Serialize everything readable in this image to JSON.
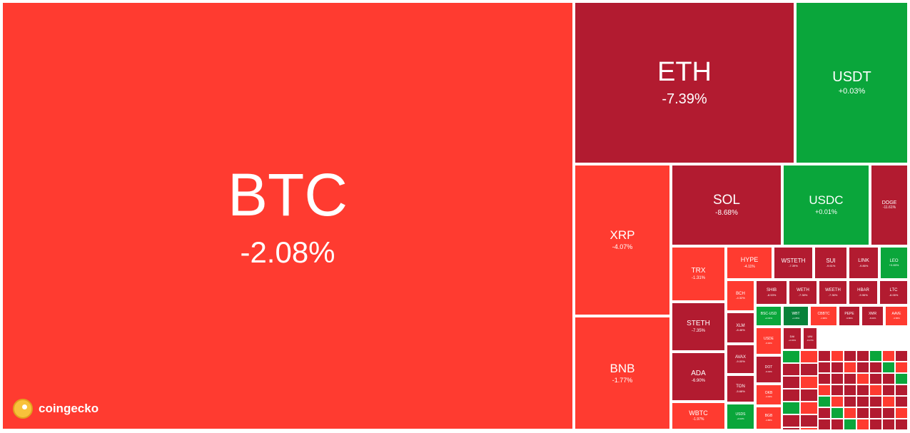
{
  "brand": {
    "name": "coingecko",
    "logo_color": "#f8c23b"
  },
  "colors": {
    "negative": "#ff3b30",
    "negative_strong": "#b21b30",
    "positive": "#0aa63b",
    "positive_strong": "#08823a"
  },
  "chart_data": {
    "type": "heatmap",
    "title": "",
    "tiles": [
      {
        "symbol": "BTC",
        "change": "-2.08%"
      },
      {
        "symbol": "ETH",
        "change": "-7.39%"
      },
      {
        "symbol": "USDT",
        "change": "+0.03%"
      },
      {
        "symbol": "XRP",
        "change": "-4.07%"
      },
      {
        "symbol": "BNB",
        "change": "-1.77%"
      },
      {
        "symbol": "SOL",
        "change": "-8.68%"
      },
      {
        "symbol": "USDC",
        "change": "+0.01%"
      },
      {
        "symbol": "DOGE",
        "change": "-11.61%"
      },
      {
        "symbol": "TRX",
        "change": "-1.31%"
      },
      {
        "symbol": "HYPE",
        "change": "-4.11%"
      },
      {
        "symbol": "WSTETH",
        "change": "-7.39%"
      },
      {
        "symbol": "SUI",
        "change": "-9.61%"
      },
      {
        "symbol": "LINK",
        "change": "-9.86%"
      },
      {
        "symbol": "LEO",
        "change": "+0.65%"
      },
      {
        "symbol": "STETH",
        "change": "-7.35%"
      },
      {
        "symbol": "BCH",
        "change": "-4.32%"
      },
      {
        "symbol": "SHIB",
        "change": "-8.53%"
      },
      {
        "symbol": "WETH",
        "change": "-7.38%"
      },
      {
        "symbol": "WEETH",
        "change": "-7.36%"
      },
      {
        "symbol": "HBAR",
        "change": "-9.96%"
      },
      {
        "symbol": "LTC",
        "change": "-8.06%"
      },
      {
        "symbol": "XLM",
        "change": "-8.46%"
      },
      {
        "symbol": "BSC-USD",
        "change": "+0.04%"
      },
      {
        "symbol": "WBT",
        "change": "+1.05%"
      },
      {
        "symbol": "CBBTC",
        "change": "-1.96%"
      },
      {
        "symbol": "PEPE",
        "change": "-9.86%"
      },
      {
        "symbol": "XMR",
        "change": "-8.02%"
      },
      {
        "symbol": "AAVE",
        "change": "-3.58%"
      },
      {
        "symbol": "ADA",
        "change": "-6.90%"
      },
      {
        "symbol": "AVAX",
        "change": "-9.00%"
      },
      {
        "symbol": "USDE",
        "change": "-0.02%"
      },
      {
        "symbol": "DOT",
        "change": "-9.04%"
      },
      {
        "symbol": "TON",
        "change": "-5.68%"
      },
      {
        "symbol": "OKB",
        "change": "-4.04%"
      },
      {
        "symbol": "WBTC",
        "change": "-1.97%"
      },
      {
        "symbol": "USDS",
        "change": "+0.02%"
      },
      {
        "symbol": "BGB",
        "change": "-4.88%"
      },
      {
        "symbol": "DAI",
        "change": "+0.00%"
      },
      {
        "symbol": "UNI",
        "change": "-8.47%"
      }
    ]
  }
}
